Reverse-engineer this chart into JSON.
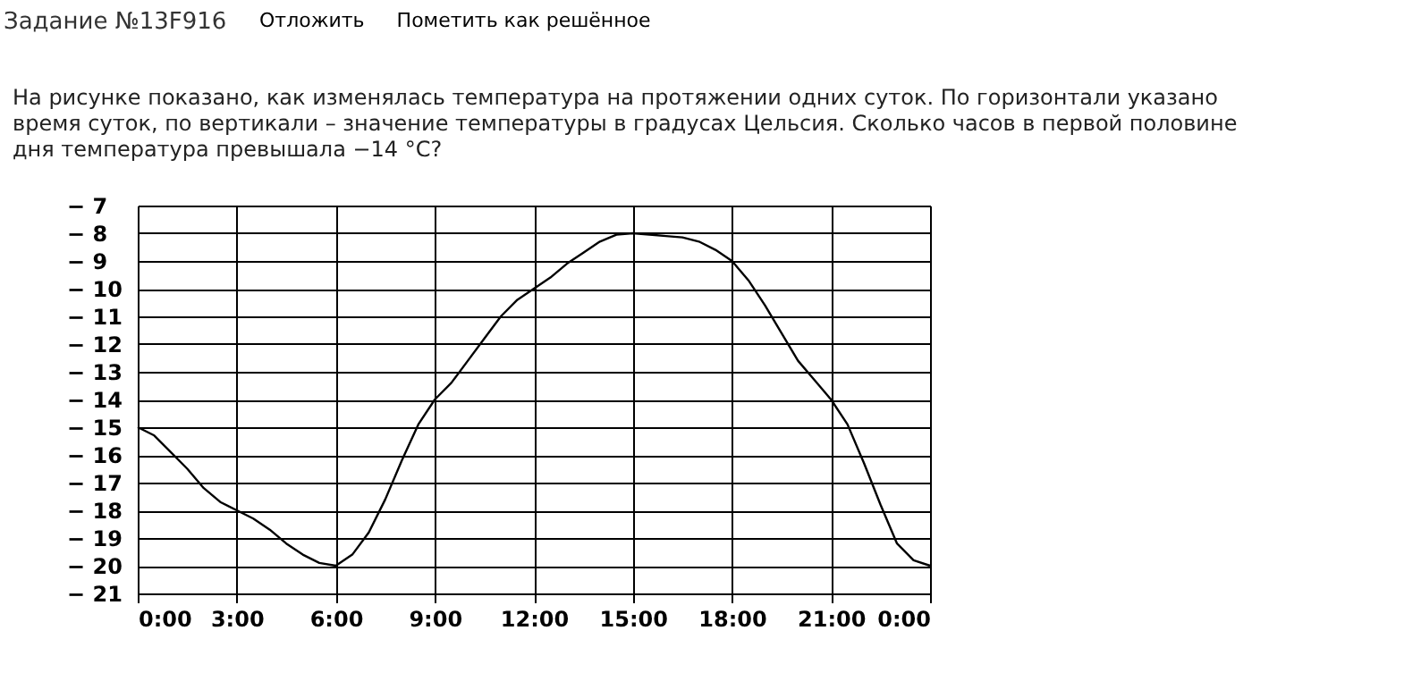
{
  "chart_data": {
    "type": "line",
    "title": "Задание №13F916",
    "subtitle": "На рисунке показано, как изменялась температура на протяжении одних суток. По горизонтали указано время суток, по вертикали – значение температуры в градусах Цельсия. Сколько часов в первой половине дня температура превышала −14 °C?",
    "annotations": [
      "Отложить",
      "Пометить как решённое"
    ],
    "x": [
      0,
      0.5,
      1,
      1.5,
      2,
      2.5,
      3,
      3.5,
      4,
      4.5,
      5,
      5.5,
      6,
      6.5,
      7,
      7.5,
      8,
      8.5,
      9,
      9.5,
      10,
      10.5,
      11,
      11.5,
      12,
      12.5,
      13,
      13.5,
      14,
      14.5,
      15,
      15.5,
      16,
      16.5,
      17,
      17.5,
      18,
      18.5,
      19,
      19.5,
      20,
      20.5,
      21,
      21.5,
      22,
      22.5,
      23,
      23.5,
      24
    ],
    "series": [
      {
        "color": "#000000",
        "values": [
          -15,
          -15.3,
          -15.9,
          -16.5,
          -17.2,
          -17.7,
          -18,
          -18.3,
          -18.7,
          -19.2,
          -19.6,
          -19.9,
          -20,
          -19.6,
          -18.8,
          -17.6,
          -16.2,
          -14.9,
          -14,
          -13.4,
          -12.6,
          -11.8,
          -11,
          -10.4,
          -10,
          -9.6,
          -9.1,
          -8.7,
          -8.3,
          -8.05,
          -8,
          -8.05,
          -8.1,
          -8.15,
          -8.3,
          -8.6,
          -9,
          -9.7,
          -10.6,
          -11.6,
          -12.6,
          -13.3,
          -14,
          -14.9,
          -16.3,
          -17.8,
          -19.2,
          -19.8,
          -20
        ]
      }
    ],
    "xlim": [
      0,
      24
    ],
    "xticks": [
      {
        "value": 0,
        "label": "0:00"
      },
      {
        "value": 3,
        "label": "3:00"
      },
      {
        "value": 6,
        "label": "6:00"
      },
      {
        "value": 9,
        "label": "9:00"
      },
      {
        "value": 12,
        "label": "12:00"
      },
      {
        "value": 15,
        "label": "15:00"
      },
      {
        "value": 18,
        "label": "18:00"
      },
      {
        "value": 21,
        "label": "21:00"
      },
      {
        "value": 24,
        "label": "0:00"
      }
    ],
    "ylim": [
      -21,
      -7
    ],
    "yticks": [
      {
        "value": -7,
        "label": "− 7"
      },
      {
        "value": -8,
        "label": "− 8"
      },
      {
        "value": -9,
        "label": "− 9"
      },
      {
        "value": -10,
        "label": "− 10"
      },
      {
        "value": -11,
        "label": "− 11"
      },
      {
        "value": -12,
        "label": "− 12"
      },
      {
        "value": -13,
        "label": "− 13"
      },
      {
        "value": -14,
        "label": "− 14"
      },
      {
        "value": -15,
        "label": "− 15"
      },
      {
        "value": -16,
        "label": "− 16"
      },
      {
        "value": -17,
        "label": "− 17"
      },
      {
        "value": -18,
        "label": "− 18"
      },
      {
        "value": -19,
        "label": "− 19"
      },
      {
        "value": -20,
        "label": "− 20"
      },
      {
        "value": -21,
        "label": "− 21"
      }
    ],
    "grid": true,
    "marker": "none",
    "line_style": "solid"
  }
}
